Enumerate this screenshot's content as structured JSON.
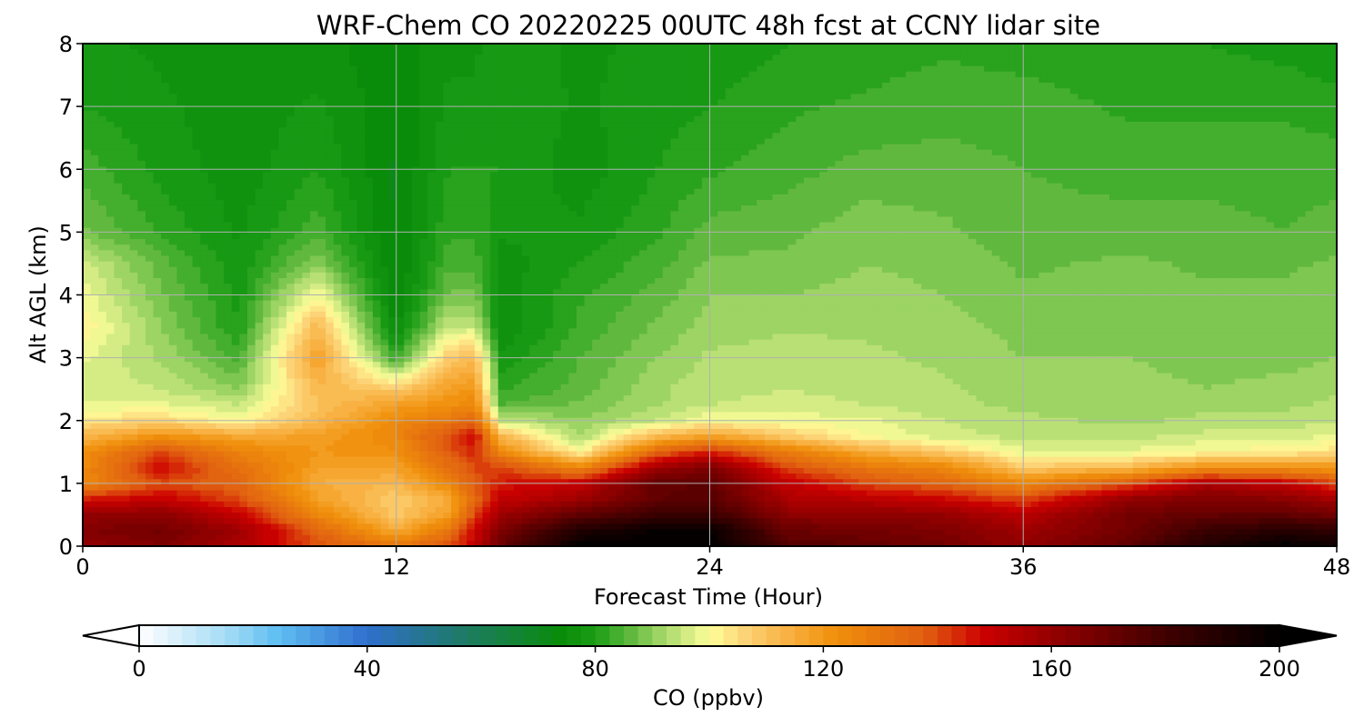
{
  "chart_data": {
    "type": "heatmap",
    "title": "WRF-Chem CO  20220225 00UTC 48h fcst at CCNY lidar site",
    "xlabel": "Forecast Time (Hour)",
    "ylabel": "Alt AGL (km)",
    "xlim": [
      0,
      48
    ],
    "ylim": [
      0,
      8
    ],
    "xticks": [
      0,
      12,
      24,
      36,
      48
    ],
    "yticks": [
      0,
      1,
      2,
      3,
      4,
      5,
      6,
      7,
      8
    ],
    "grid": true,
    "colorbar": {
      "label": "CO  (ppbv)",
      "min": 0,
      "max": 200,
      "ticks": [
        0,
        40,
        80,
        120,
        160,
        200
      ],
      "extend": "both",
      "stops": [
        [
          0,
          "#ffffff"
        ],
        [
          16,
          "#9fdaf5"
        ],
        [
          24,
          "#61bff2"
        ],
        [
          40,
          "#2f6fce"
        ],
        [
          56,
          "#1f7a6a"
        ],
        [
          74,
          "#0a8c0a"
        ],
        [
          80,
          "#1b9c16"
        ],
        [
          86,
          "#5db83c"
        ],
        [
          92,
          "#a6d86a"
        ],
        [
          100,
          "#fefe9a"
        ],
        [
          106,
          "#fcd478"
        ],
        [
          114,
          "#f8b040"
        ],
        [
          122,
          "#f0900c"
        ],
        [
          138,
          "#e05e10"
        ],
        [
          148,
          "#cc0000"
        ],
        [
          162,
          "#8c0000"
        ],
        [
          180,
          "#400000"
        ],
        [
          200,
          "#000000"
        ]
      ]
    },
    "time_hours": [
      0,
      3,
      6,
      9,
      12,
      14,
      15,
      16,
      19,
      22,
      24,
      27,
      30,
      33,
      36,
      40,
      43,
      46,
      48
    ],
    "altitude_km": [
      0,
      0.25,
      0.5,
      0.75,
      1,
      1.25,
      1.5,
      1.75,
      2,
      2.25,
      2.5,
      3,
      3.5,
      4,
      4.5,
      5,
      6,
      7,
      8
    ],
    "co_ppbv": [
      [
        160,
        165,
        155,
        140,
        130,
        140,
        150,
        170,
        200,
        200,
        200,
        175,
        172,
        168,
        160,
        172,
        190,
        200,
        196
      ],
      [
        165,
        168,
        158,
        135,
        115,
        130,
        148,
        165,
        190,
        198,
        198,
        170,
        168,
        165,
        158,
        168,
        182,
        188,
        185
      ],
      [
        160,
        162,
        150,
        125,
        108,
        118,
        140,
        158,
        172,
        182,
        182,
        162,
        162,
        160,
        152,
        168,
        172,
        172,
        168
      ],
      [
        145,
        150,
        140,
        118,
        108,
        115,
        135,
        150,
        158,
        172,
        175,
        155,
        152,
        148,
        140,
        160,
        165,
        162,
        156
      ],
      [
        125,
        140,
        135,
        115,
        112,
        125,
        138,
        145,
        150,
        172,
        172,
        150,
        140,
        135,
        125,
        138,
        155,
        150,
        140
      ],
      [
        124,
        148,
        132,
        118,
        118,
        132,
        140,
        142,
        125,
        158,
        165,
        140,
        130,
        125,
        108,
        112,
        122,
        122,
        120
      ],
      [
        122,
        140,
        126,
        120,
        122,
        138,
        145,
        125,
        100,
        135,
        145,
        128,
        115,
        108,
        98,
        98,
        100,
        102,
        104
      ],
      [
        112,
        122,
        116,
        118,
        125,
        140,
        148,
        112,
        92,
        112,
        118,
        108,
        100,
        96,
        94,
        94,
        96,
        96,
        98
      ],
      [
        104,
        106,
        100,
        112,
        124,
        130,
        135,
        95,
        90,
        95,
        100,
        99,
        98,
        95,
        93,
        92,
        93,
        93,
        95
      ],
      [
        98,
        98,
        95,
        110,
        118,
        122,
        125,
        85,
        88,
        92,
        95,
        96,
        95,
        93,
        92,
        91,
        92,
        92,
        93
      ],
      [
        96,
        95,
        90,
        112,
        108,
        118,
        120,
        82,
        86,
        92,
        94,
        95,
        94,
        93,
        91,
        91,
        90,
        91,
        92
      ],
      [
        98,
        92,
        84,
        118,
        82,
        108,
        112,
        78,
        85,
        90,
        93,
        94,
        93,
        92,
        90,
        90,
        89,
        89,
        90
      ],
      [
        102,
        90,
        80,
        112,
        74,
        95,
        95,
        75,
        83,
        88,
        91,
        92,
        92,
        91,
        89,
        89,
        88,
        88,
        90
      ],
      [
        99,
        88,
        79,
        100,
        72,
        88,
        88,
        76,
        82,
        86,
        90,
        90,
        91,
        90,
        88,
        89,
        88,
        88,
        89
      ],
      [
        96,
        86,
        78,
        90,
        72,
        84,
        84,
        76,
        80,
        84,
        88,
        88,
        90,
        89,
        87,
        88,
        87,
        87,
        88
      ],
      [
        88,
        82,
        77,
        84,
        72,
        82,
        82,
        78,
        78,
        82,
        86,
        87,
        89,
        88,
        86,
        86,
        86,
        85,
        86
      ],
      [
        84,
        79,
        76,
        80,
        72,
        80,
        80,
        80,
        76,
        80,
        82,
        84,
        86,
        86,
        85,
        84,
        84,
        84,
        84
      ],
      [
        80,
        78,
        76,
        78,
        73,
        78,
        78,
        80,
        77,
        79,
        80,
        82,
        83,
        84,
        84,
        82,
        82,
        82,
        81
      ],
      [
        78,
        77,
        76,
        76,
        73,
        77,
        77,
        79,
        77,
        78,
        78,
        80,
        81,
        82,
        81,
        80,
        80,
        79,
        78
      ]
    ]
  }
}
